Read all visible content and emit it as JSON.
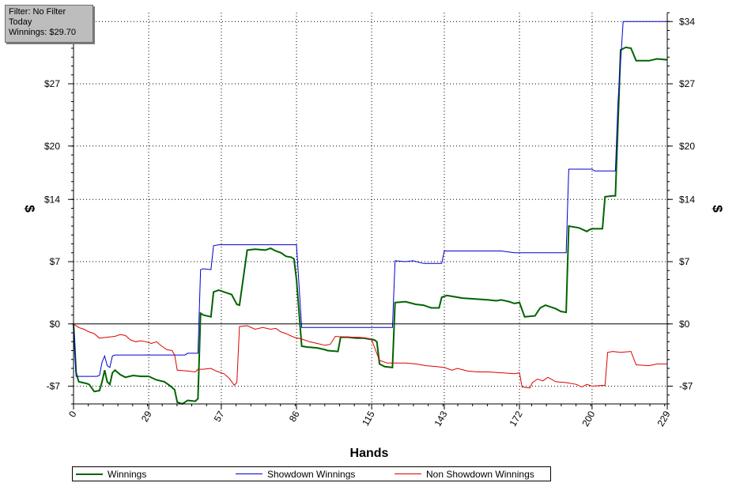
{
  "info": {
    "filter": "Filter: No Filter",
    "period": "Today",
    "winnings": "Winnings: $29.70"
  },
  "chart_data": {
    "type": "line",
    "xlabel": "Hands",
    "ylabel": "$",
    "xlim": [
      0,
      229
    ],
    "ylim": [
      -9,
      35
    ],
    "x_ticks": [
      0,
      29,
      57,
      86,
      115,
      143,
      172,
      200,
      229
    ],
    "y_ticks": [
      -7,
      0,
      7,
      14,
      20,
      27,
      34
    ],
    "y_tick_labels": [
      "-$7",
      "$0",
      "$7",
      "$14",
      "$20",
      "$27",
      "$34"
    ],
    "grid": true,
    "legend": "bottom",
    "series": [
      {
        "name": "Winnings",
        "color": "#006400",
        "points": [
          [
            0,
            0
          ],
          [
            1,
            -5.5
          ],
          [
            2,
            -6.5
          ],
          [
            5,
            -6.7
          ],
          [
            6,
            -6.8
          ],
          [
            7,
            -7.2
          ],
          [
            8,
            -7.6
          ],
          [
            10,
            -7.5
          ],
          [
            11,
            -6.5
          ],
          [
            12,
            -5.2
          ],
          [
            13,
            -6.5
          ],
          [
            14,
            -6.8
          ],
          [
            15,
            -5.5
          ],
          [
            16,
            -5.2
          ],
          [
            18,
            -5.7
          ],
          [
            20,
            -6.0
          ],
          [
            23,
            -5.8
          ],
          [
            26,
            -5.9
          ],
          [
            29,
            -5.9
          ],
          [
            32,
            -6.3
          ],
          [
            35,
            -6.5
          ],
          [
            37,
            -6.9
          ],
          [
            39,
            -7.4
          ],
          [
            40,
            -8.8
          ],
          [
            42,
            -9.0
          ],
          [
            44,
            -8.6
          ],
          [
            47,
            -8.7
          ],
          [
            48,
            -8.4
          ],
          [
            49,
            1.2
          ],
          [
            50,
            1.0
          ],
          [
            53,
            0.8
          ],
          [
            54,
            3.6
          ],
          [
            56,
            3.8
          ],
          [
            58,
            3.6
          ],
          [
            61,
            3.3
          ],
          [
            63,
            2.2
          ],
          [
            64,
            2.1
          ],
          [
            67,
            8.3
          ],
          [
            70,
            8.4
          ],
          [
            74,
            8.3
          ],
          [
            76,
            8.5
          ],
          [
            78,
            8.2
          ],
          [
            80,
            8.0
          ],
          [
            82,
            7.6
          ],
          [
            84,
            7.5
          ],
          [
            85,
            7.3
          ],
          [
            86,
            5.0
          ],
          [
            88,
            -2.5
          ],
          [
            90,
            -2.6
          ],
          [
            94,
            -2.7
          ],
          [
            97,
            -2.9
          ],
          [
            98,
            -3.0
          ],
          [
            102,
            -3.1
          ],
          [
            103,
            -1.5
          ],
          [
            106,
            -1.5
          ],
          [
            109,
            -1.6
          ],
          [
            112,
            -1.6
          ],
          [
            116,
            -1.8
          ],
          [
            117,
            -2.0
          ],
          [
            118,
            -4.5
          ],
          [
            120,
            -4.8
          ],
          [
            123,
            -4.9
          ],
          [
            124,
            2.4
          ],
          [
            128,
            2.5
          ],
          [
            132,
            2.2
          ],
          [
            135,
            2.1
          ],
          [
            137,
            1.9
          ],
          [
            138,
            1.8
          ],
          [
            141,
            1.8
          ],
          [
            142,
            3.0
          ],
          [
            144,
            3.2
          ],
          [
            146,
            3.1
          ],
          [
            150,
            2.9
          ],
          [
            155,
            2.8
          ],
          [
            160,
            2.7
          ],
          [
            163,
            2.6
          ],
          [
            165,
            2.7
          ],
          [
            168,
            2.5
          ],
          [
            170,
            2.3
          ],
          [
            172,
            2.4
          ],
          [
            174,
            0.8
          ],
          [
            178,
            0.9
          ],
          [
            180,
            1.8
          ],
          [
            182,
            2.1
          ],
          [
            186,
            1.7
          ],
          [
            188,
            1.4
          ],
          [
            190,
            1.3
          ],
          [
            191,
            11.0
          ],
          [
            195,
            10.8
          ],
          [
            198,
            10.4
          ],
          [
            199,
            10.6
          ],
          [
            200,
            10.7
          ],
          [
            204,
            10.7
          ],
          [
            205,
            14.3
          ],
          [
            208,
            14.4
          ],
          [
            209,
            14.4
          ],
          [
            211,
            30.8
          ],
          [
            213,
            31.1
          ],
          [
            215,
            31.0
          ],
          [
            217,
            29.6
          ],
          [
            222,
            29.6
          ],
          [
            225,
            29.8
          ],
          [
            229,
            29.7
          ]
        ]
      },
      {
        "name": "Showdown Winnings",
        "color": "#0000cc",
        "points": [
          [
            0,
            0
          ],
          [
            1,
            -5.9
          ],
          [
            2,
            -5.9
          ],
          [
            9,
            -5.9
          ],
          [
            10,
            -5.8
          ],
          [
            11,
            -4.3
          ],
          [
            12,
            -3.6
          ],
          [
            13,
            -4.7
          ],
          [
            14,
            -4.9
          ],
          [
            15,
            -3.6
          ],
          [
            16,
            -3.5
          ],
          [
            28,
            -3.5
          ],
          [
            32,
            -3.5
          ],
          [
            43,
            -3.5
          ],
          [
            44,
            -3.3
          ],
          [
            48,
            -3.3
          ],
          [
            49,
            6.1
          ],
          [
            50,
            6.2
          ],
          [
            53,
            6.1
          ],
          [
            54,
            8.8
          ],
          [
            56,
            8.9
          ],
          [
            80,
            8.9
          ],
          [
            86,
            8.9
          ],
          [
            88,
            -0.4
          ],
          [
            100,
            -0.4
          ],
          [
            123,
            -0.4
          ],
          [
            124,
            7.1
          ],
          [
            128,
            7.0
          ],
          [
            131,
            7.1
          ],
          [
            135,
            6.8
          ],
          [
            138,
            6.8
          ],
          [
            142,
            6.8
          ],
          [
            143,
            8.2
          ],
          [
            148,
            8.2
          ],
          [
            165,
            8.2
          ],
          [
            170,
            8.0
          ],
          [
            175,
            8.0
          ],
          [
            190,
            8.0
          ],
          [
            191,
            17.4
          ],
          [
            200,
            17.4
          ],
          [
            201,
            17.2
          ],
          [
            208,
            17.2
          ],
          [
            209,
            17.2
          ],
          [
            210,
            25.0
          ],
          [
            212,
            34.0
          ],
          [
            229,
            34.0
          ]
        ]
      },
      {
        "name": "Non Showdown Winnings",
        "color": "#dd0000",
        "points": [
          [
            0,
            0
          ],
          [
            2,
            -0.4
          ],
          [
            4,
            -0.6
          ],
          [
            6,
            -0.9
          ],
          [
            8,
            -1.1
          ],
          [
            10,
            -1.6
          ],
          [
            13,
            -1.5
          ],
          [
            16,
            -1.4
          ],
          [
            18,
            -1.2
          ],
          [
            20,
            -1.3
          ],
          [
            22,
            -1.8
          ],
          [
            24,
            -2.0
          ],
          [
            26,
            -1.9
          ],
          [
            28,
            -2.0
          ],
          [
            30,
            -2.2
          ],
          [
            32,
            -2.0
          ],
          [
            34,
            -2.5
          ],
          [
            36,
            -2.9
          ],
          [
            38,
            -3.0
          ],
          [
            39,
            -3.5
          ],
          [
            40,
            -5.2
          ],
          [
            44,
            -5.3
          ],
          [
            47,
            -5.4
          ],
          [
            48,
            -5.1
          ],
          [
            50,
            -5.1
          ],
          [
            53,
            -5.0
          ],
          [
            55,
            -5.3
          ],
          [
            58,
            -5.6
          ],
          [
            60,
            -6.1
          ],
          [
            62,
            -6.9
          ],
          [
            63,
            -6.6
          ],
          [
            64,
            -0.3
          ],
          [
            67,
            -0.2
          ],
          [
            70,
            -0.6
          ],
          [
            73,
            -0.4
          ],
          [
            76,
            -0.6
          ],
          [
            78,
            -0.5
          ],
          [
            80,
            -0.9
          ],
          [
            82,
            -1.1
          ],
          [
            85,
            -1.5
          ],
          [
            88,
            -1.7
          ],
          [
            91,
            -2.0
          ],
          [
            94,
            -2.2
          ],
          [
            97,
            -2.4
          ],
          [
            99,
            -2.3
          ],
          [
            101,
            -1.4
          ],
          [
            105,
            -1.5
          ],
          [
            110,
            -1.5
          ],
          [
            113,
            -1.6
          ],
          [
            115,
            -1.8
          ],
          [
            118,
            -4.1
          ],
          [
            121,
            -4.4
          ],
          [
            124,
            -4.4
          ],
          [
            128,
            -4.4
          ],
          [
            132,
            -4.5
          ],
          [
            136,
            -4.7
          ],
          [
            140,
            -4.8
          ],
          [
            143,
            -4.9
          ],
          [
            146,
            -5.2
          ],
          [
            148,
            -5.0
          ],
          [
            152,
            -5.3
          ],
          [
            156,
            -5.4
          ],
          [
            160,
            -5.4
          ],
          [
            165,
            -5.5
          ],
          [
            170,
            -5.6
          ],
          [
            172,
            -5.5
          ],
          [
            173,
            -7.1
          ],
          [
            176,
            -7.2
          ],
          [
            177,
            -6.6
          ],
          [
            179,
            -6.2
          ],
          [
            181,
            -6.4
          ],
          [
            183,
            -6.0
          ],
          [
            186,
            -6.5
          ],
          [
            190,
            -6.6
          ],
          [
            194,
            -6.8
          ],
          [
            196,
            -7.1
          ],
          [
            198,
            -6.8
          ],
          [
            200,
            -7.0
          ],
          [
            205,
            -6.9
          ],
          [
            206,
            -3.2
          ],
          [
            208,
            -3.1
          ],
          [
            211,
            -3.2
          ],
          [
            215,
            -3.1
          ],
          [
            217,
            -4.6
          ],
          [
            222,
            -4.7
          ],
          [
            225,
            -4.5
          ],
          [
            229,
            -4.5
          ]
        ]
      }
    ]
  }
}
